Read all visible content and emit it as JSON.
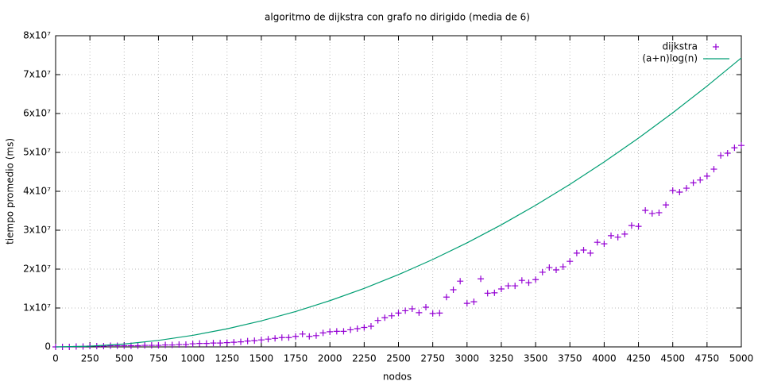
{
  "chart_data": {
    "type": "scatter",
    "title": "algoritmo de dijkstra con grafo no dirigido (media de 6)",
    "xlabel": "nodos",
    "ylabel": "tiempo promedio (ms)",
    "xlim": [
      0,
      5000
    ],
    "xticks": [
      0,
      250,
      500,
      750,
      1000,
      1250,
      1500,
      1750,
      2000,
      2250,
      2500,
      2750,
      3000,
      3250,
      3500,
      3750,
      4000,
      4250,
      4500,
      4750,
      5000
    ],
    "ylim": [
      0,
      80000000
    ],
    "yticks": [
      0,
      {
        "value": 10000000,
        "label": "1x10⁷"
      },
      {
        "value": 20000000,
        "label": "2x10⁷"
      },
      {
        "value": 30000000,
        "label": "3x10⁷"
      },
      {
        "value": 40000000,
        "label": "4x10⁷"
      },
      {
        "value": 50000000,
        "label": "5x10⁷"
      },
      {
        "value": 60000000,
        "label": "6x10⁷"
      },
      {
        "value": 70000000,
        "label": "7x10⁷"
      },
      {
        "value": 80000000,
        "label": "8x10⁷"
      }
    ],
    "grid": true,
    "legend": "top right",
    "series": [
      {
        "name": "dijkstra",
        "color": "#9400d3",
        "style": "points",
        "x": [
          0,
          50,
          100,
          150,
          200,
          250,
          300,
          350,
          400,
          450,
          500,
          550,
          600,
          650,
          700,
          750,
          800,
          850,
          900,
          950,
          1000,
          1050,
          1100,
          1150,
          1200,
          1250,
          1300,
          1350,
          1400,
          1450,
          1500,
          1550,
          1600,
          1650,
          1700,
          1750,
          1800,
          1850,
          1900,
          1950,
          2000,
          2050,
          2100,
          2150,
          2200,
          2250,
          2300,
          2350,
          2400,
          2450,
          2500,
          2550,
          2600,
          2650,
          2700,
          2750,
          2800,
          2850,
          2900,
          2950,
          3000,
          3050,
          3100,
          3150,
          3200,
          3250,
          3300,
          3350,
          3400,
          3450,
          3500,
          3550,
          3600,
          3650,
          3700,
          3750,
          3800,
          3850,
          3900,
          3950,
          4000,
          4050,
          4100,
          4150,
          4200,
          4250,
          4300,
          4350,
          4400,
          4450,
          4500,
          4550,
          4600,
          4650,
          4700,
          4750,
          4800,
          4850,
          4900,
          4950,
          5000
        ],
        "values": [
          0,
          0,
          0,
          100000,
          100000,
          200000,
          200000,
          200000,
          300000,
          300000,
          300000,
          300000,
          300000,
          400000,
          400000,
          400000,
          500000,
          500000,
          600000,
          600000,
          800000,
          900000,
          900000,
          1000000,
          1000000,
          1100000,
          1200000,
          1300000,
          1500000,
          1600000,
          1800000,
          2000000,
          2200000,
          2400000,
          2400000,
          2700000,
          3300000,
          2700000,
          2900000,
          3600000,
          3900000,
          4000000,
          4000000,
          4400000,
          4700000,
          5000000,
          5300000,
          6800000,
          7500000,
          8000000,
          8700000,
          9300000,
          9800000,
          8800000,
          10200000,
          8600000,
          8700000,
          12800000,
          14700000,
          16900000,
          11200000,
          11600000,
          17500000,
          13800000,
          13900000,
          14900000,
          15700000,
          15700000,
          17100000,
          16500000,
          17300000,
          19200000,
          20400000,
          19800000,
          20600000,
          22000000,
          24100000,
          24900000,
          24100000,
          26900000,
          26500000,
          28600000,
          28200000,
          29000000,
          31200000,
          31000000,
          35100000,
          34300000,
          34500000,
          36500000,
          40200000,
          39800000,
          40800000,
          42200000,
          42900000,
          43900000,
          45700000,
          49200000,
          49800000,
          51200000,
          51800000
        ]
      },
      {
        "name": "(a+n)log(n)",
        "color": "#009e73",
        "style": "line",
        "x": [
          0,
          250,
          500,
          750,
          1000,
          1250,
          1500,
          1750,
          2000,
          2250,
          2500,
          2750,
          3000,
          3250,
          3500,
          3750,
          4000,
          4250,
          4500,
          4750,
          5000
        ],
        "values": [
          0,
          185750,
          743000,
          1671750,
          2972000,
          4643750,
          6687000,
          9101750,
          11888000,
          15045750,
          18575000,
          22475750,
          26748000,
          31391750,
          36407000,
          41793750,
          47552000,
          53681750,
          60183000,
          67055750,
          74300000
        ]
      }
    ]
  }
}
